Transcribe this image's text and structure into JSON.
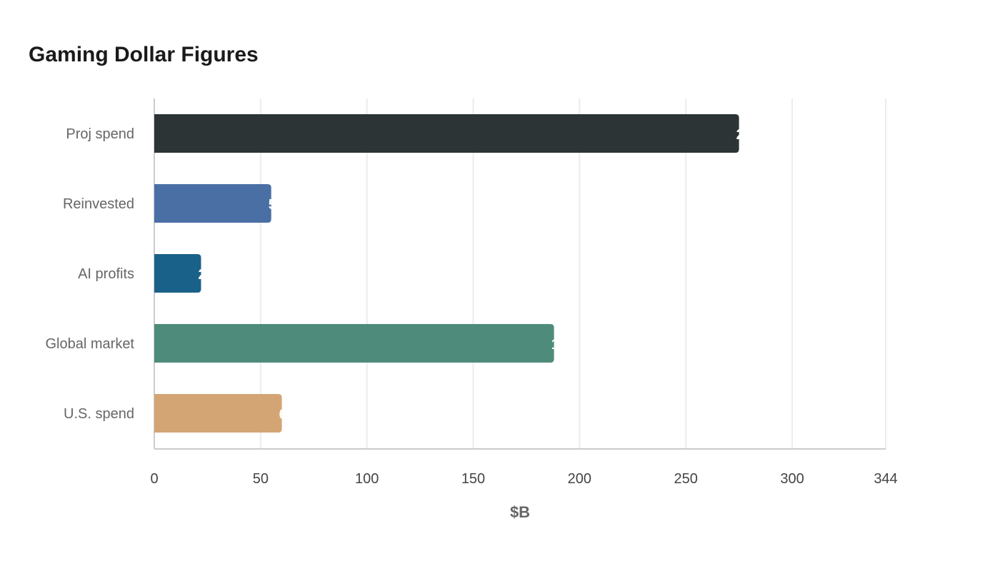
{
  "chart_data": {
    "type": "bar",
    "orientation": "horizontal",
    "title": "Gaming Dollar Figures",
    "xlabel": "$B",
    "ylabel": "",
    "xlim": [
      0,
      344
    ],
    "x_ticks": [
      0,
      50,
      100,
      150,
      200,
      250,
      300,
      344
    ],
    "grid": true,
    "categories": [
      "Proj spend",
      "Reinvested",
      "AI profits",
      "Global market",
      "U.S. spend"
    ],
    "values": [
      275,
      55,
      22,
      188,
      60
    ],
    "colors": [
      "#2d3436",
      "#4a6fa5",
      "#1a6189",
      "#4e8b7a",
      "#d4a574"
    ]
  }
}
